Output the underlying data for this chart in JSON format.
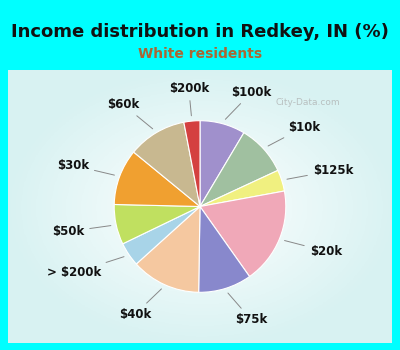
{
  "title": "Income distribution in Redkey, IN (%)",
  "subtitle": "White residents",
  "bg_color": "#00FFFF",
  "labels": [
    "$100k",
    "$10k",
    "$125k",
    "$20k",
    "$75k",
    "$40k",
    "> $200k",
    "$50k",
    "$30k",
    "$60k",
    "$200k"
  ],
  "sizes": [
    8.5,
    9.5,
    4.0,
    18.0,
    10.0,
    13.0,
    4.5,
    7.5,
    10.5,
    11.0,
    3.0
  ],
  "colors": [
    "#a090cc",
    "#a0c0a0",
    "#f0f080",
    "#f0a8b8",
    "#8888cc",
    "#f5c8a0",
    "#a8d4e8",
    "#c0e060",
    "#f0a030",
    "#c8b890",
    "#d44040"
  ],
  "title_fontsize": 13,
  "subtitle_fontsize": 10,
  "subtitle_color": "#aa6633",
  "label_fontsize": 8.5
}
